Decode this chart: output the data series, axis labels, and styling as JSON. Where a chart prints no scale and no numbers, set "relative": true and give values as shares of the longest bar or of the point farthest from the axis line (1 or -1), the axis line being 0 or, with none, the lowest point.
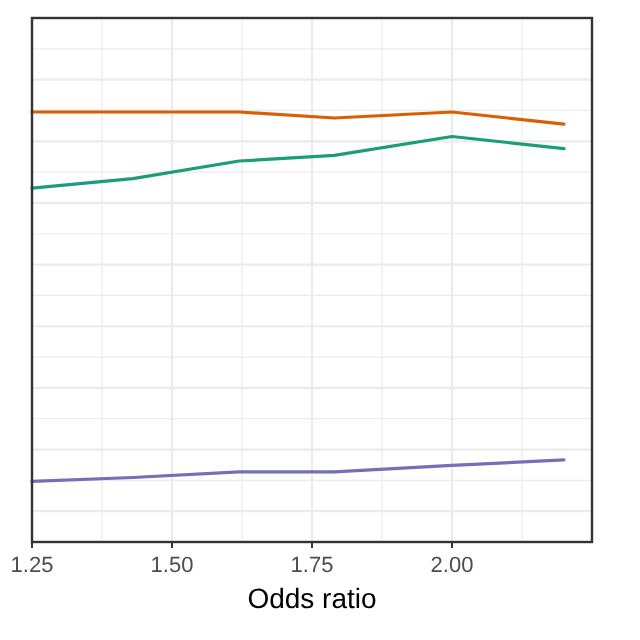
{
  "chart_data": {
    "type": "line",
    "relative": true,
    "xlabel": "Odds ratio",
    "x": [
      1.25,
      1.43,
      1.62,
      1.79,
      2.0,
      2.2
    ],
    "xlim": [
      1.25,
      2.25
    ],
    "xticks": [
      {
        "value": 1.25,
        "label": "1.25"
      },
      {
        "value": 1.5,
        "label": "1.50"
      },
      {
        "value": 1.75,
        "label": "1.75"
      },
      {
        "value": 2.0,
        "label": "2.00"
      }
    ],
    "grid": true,
    "line_style": "solid",
    "series": [
      {
        "color": "#d95f02",
        "values": [
          1,
          1,
          1,
          0.986,
          1,
          0.972
        ]
      },
      {
        "color": "#1b9e77",
        "values": [
          0.823,
          0.845,
          0.886,
          0.899,
          0.943,
          0.915
        ]
      },
      {
        "color": "#7570b3",
        "values": [
          0.141,
          0.15,
          0.163,
          0.163,
          0.178,
          0.191
        ]
      }
    ]
  }
}
